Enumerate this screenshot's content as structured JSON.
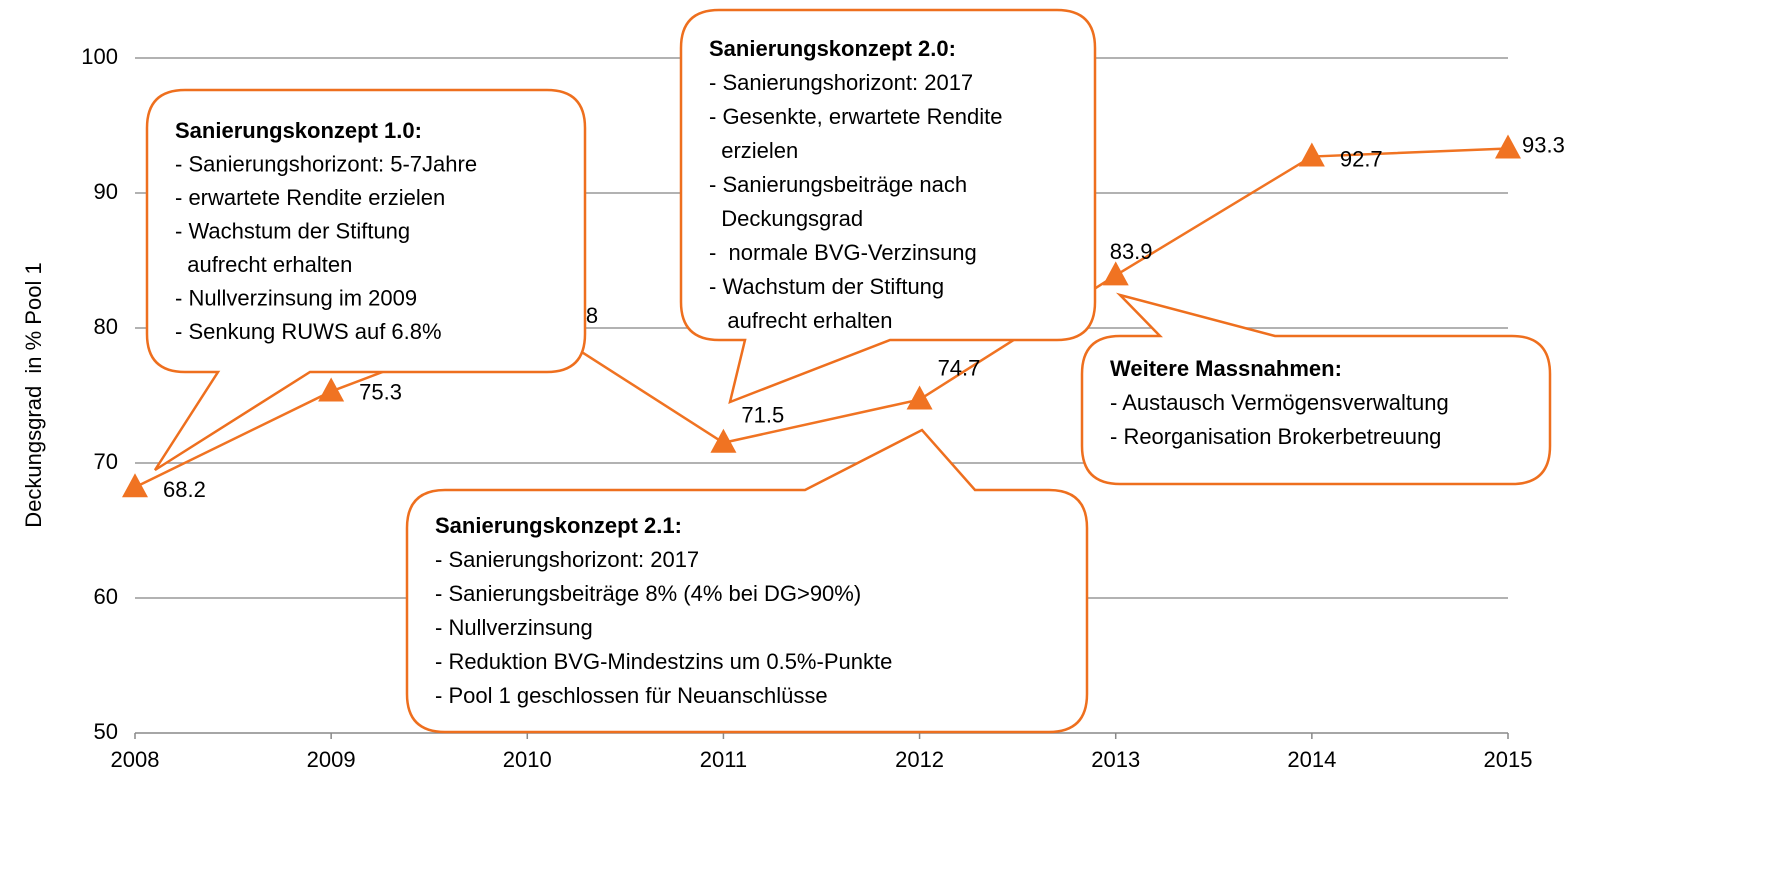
{
  "chart_data": {
    "type": "line",
    "y_label": "Deckungsgrad  in % Pool 1",
    "x": [
      2008,
      2009,
      2010,
      2011,
      2012,
      2013,
      2014,
      2015
    ],
    "series": [
      {
        "name": "Deckungsgrad",
        "color": "#f07322",
        "values": [
          68.2,
          75.3,
          80.8,
          71.5,
          74.7,
          83.9,
          92.7,
          93.3
        ]
      }
    ],
    "xlim": [
      2008,
      2015
    ],
    "xticks": [
      2008,
      2009,
      2010,
      2011,
      2012,
      2013,
      2014,
      2015
    ],
    "ylim": [
      50,
      100
    ],
    "yticks": [
      50,
      60,
      70,
      80,
      90,
      100
    ],
    "grid": true,
    "annotations": [
      {
        "title": "Sanierungskonzept 1.0:",
        "lines": [
          "- Sanierungshorizont: 5-7Jahre",
          "- erwartete Rendite erzielen",
          "- Wachstum der Stiftung",
          "  aufrecht erhalten",
          "- Nullverzinsung im 2009",
          "- Senkung RUWS auf 6.8%"
        ]
      },
      {
        "title": "Sanierungskonzept 2.0:",
        "lines": [
          "- Sanierungshorizont: 2017",
          "- Gesenkte, erwartete Rendite",
          "  erzielen",
          "- Sanierungsbeiträge nach",
          "  Deckungsgrad",
          "-  normale BVG-Verzinsung",
          "- Wachstum der Stiftung",
          "   aufrecht erhalten"
        ]
      },
      {
        "title": "Sanierungskonzept 2.1:",
        "lines": [
          "- Sanierungshorizont: 2017",
          "- Sanierungsbeiträge 8% (4% bei DG>90%)",
          "- Nullverzinsung",
          "- Reduktion BVG-Mindestzins um 0.5%-Punkte",
          "- Pool 1 geschlossen für Neuanschlüsse"
        ]
      },
      {
        "title": "Weitere Massnahmen:",
        "lines": [
          "- Austausch Vermögensverwaltung",
          "- Reorganisation Brokerbetreuung"
        ]
      }
    ]
  }
}
